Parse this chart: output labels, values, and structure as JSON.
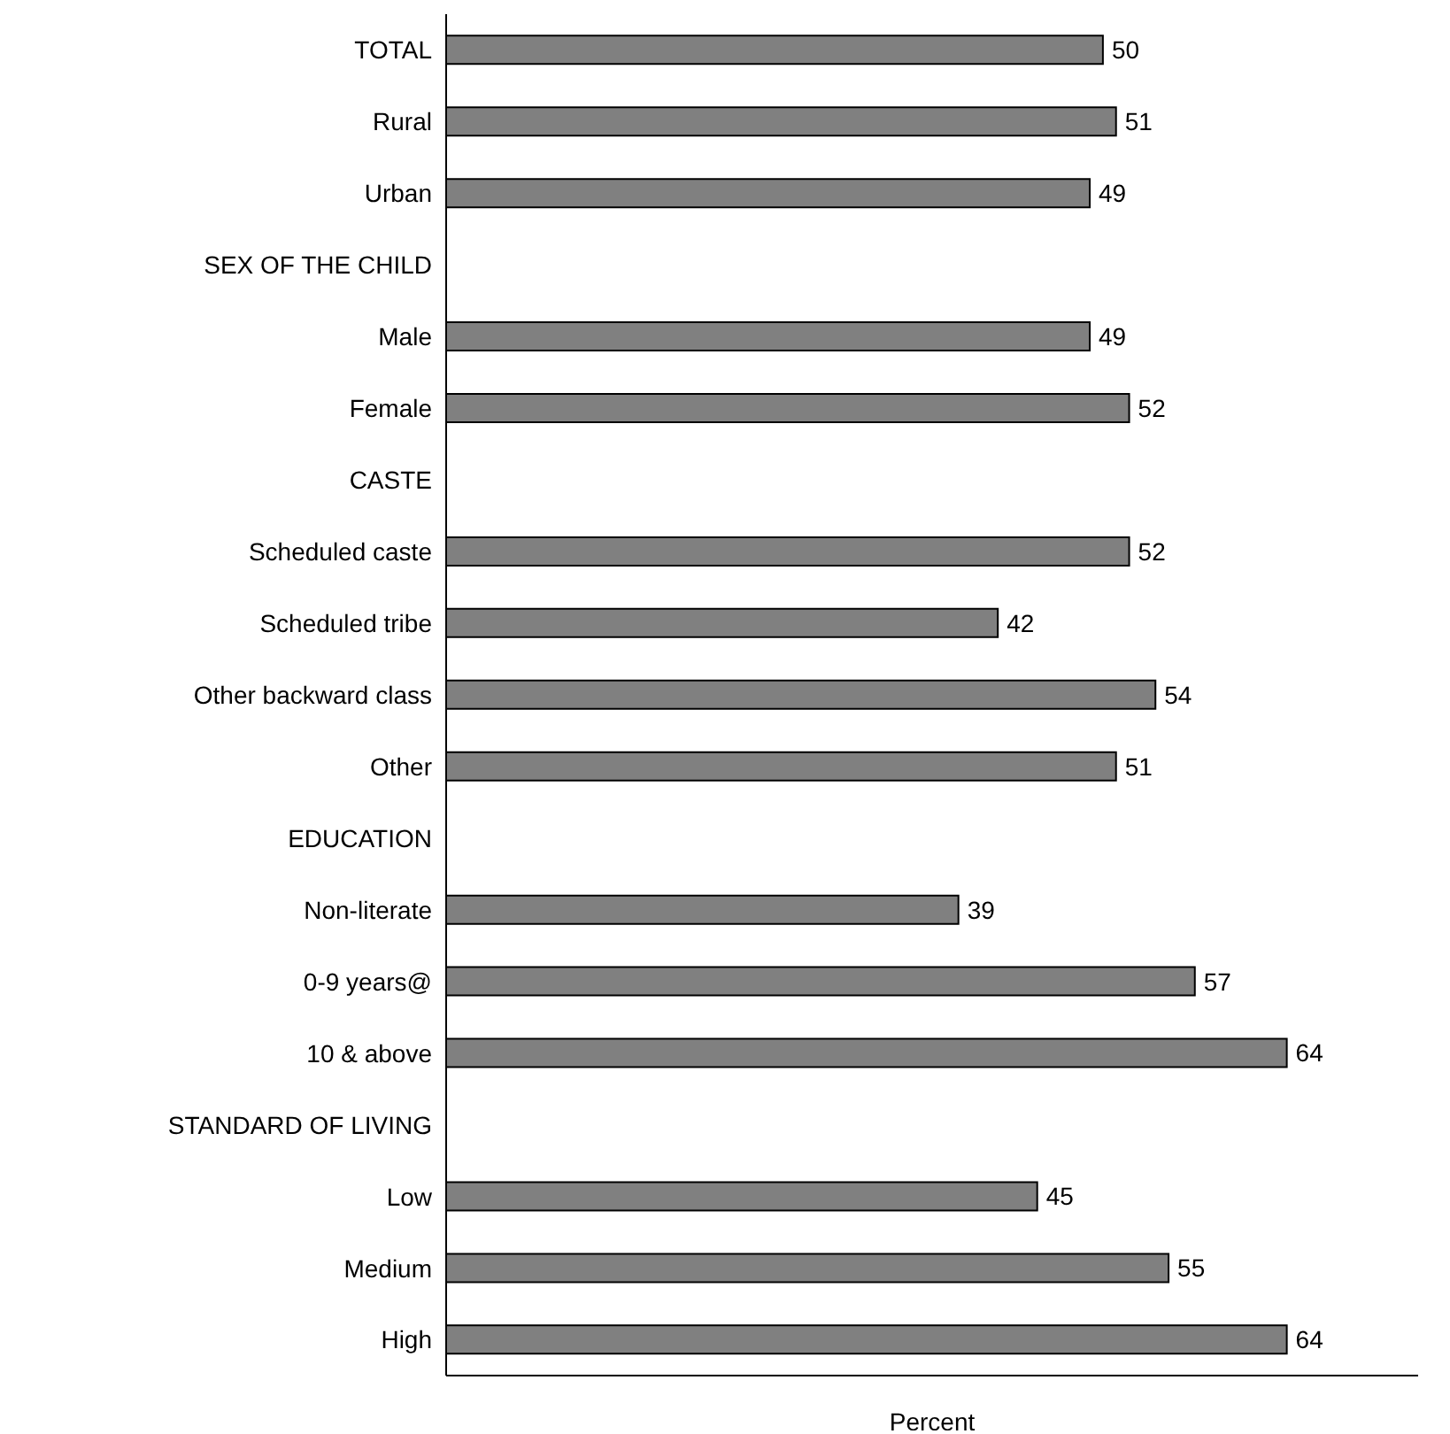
{
  "chart_data": {
    "type": "bar",
    "orientation": "horizontal",
    "xlabel": "Percent",
    "categories": [
      "TOTAL",
      "Rural",
      "Urban",
      "SEX OF THE CHILD",
      "Male",
      "Female",
      "CASTE",
      "Scheduled caste",
      "Scheduled tribe",
      "Other backward class",
      "Other",
      "EDUCATION",
      "Non-literate",
      "0-9 years@",
      "10 & above",
      "STANDARD OF LIVING",
      "Low",
      "Medium",
      "High"
    ],
    "values": [
      50,
      51,
      49,
      null,
      49,
      52,
      null,
      52,
      42,
      54,
      51,
      null,
      39,
      57,
      64,
      null,
      45,
      55,
      64
    ],
    "color": "#808080",
    "xlim": [
      0,
      74
    ],
    "data_labels": true,
    "tick_labels": "y"
  }
}
